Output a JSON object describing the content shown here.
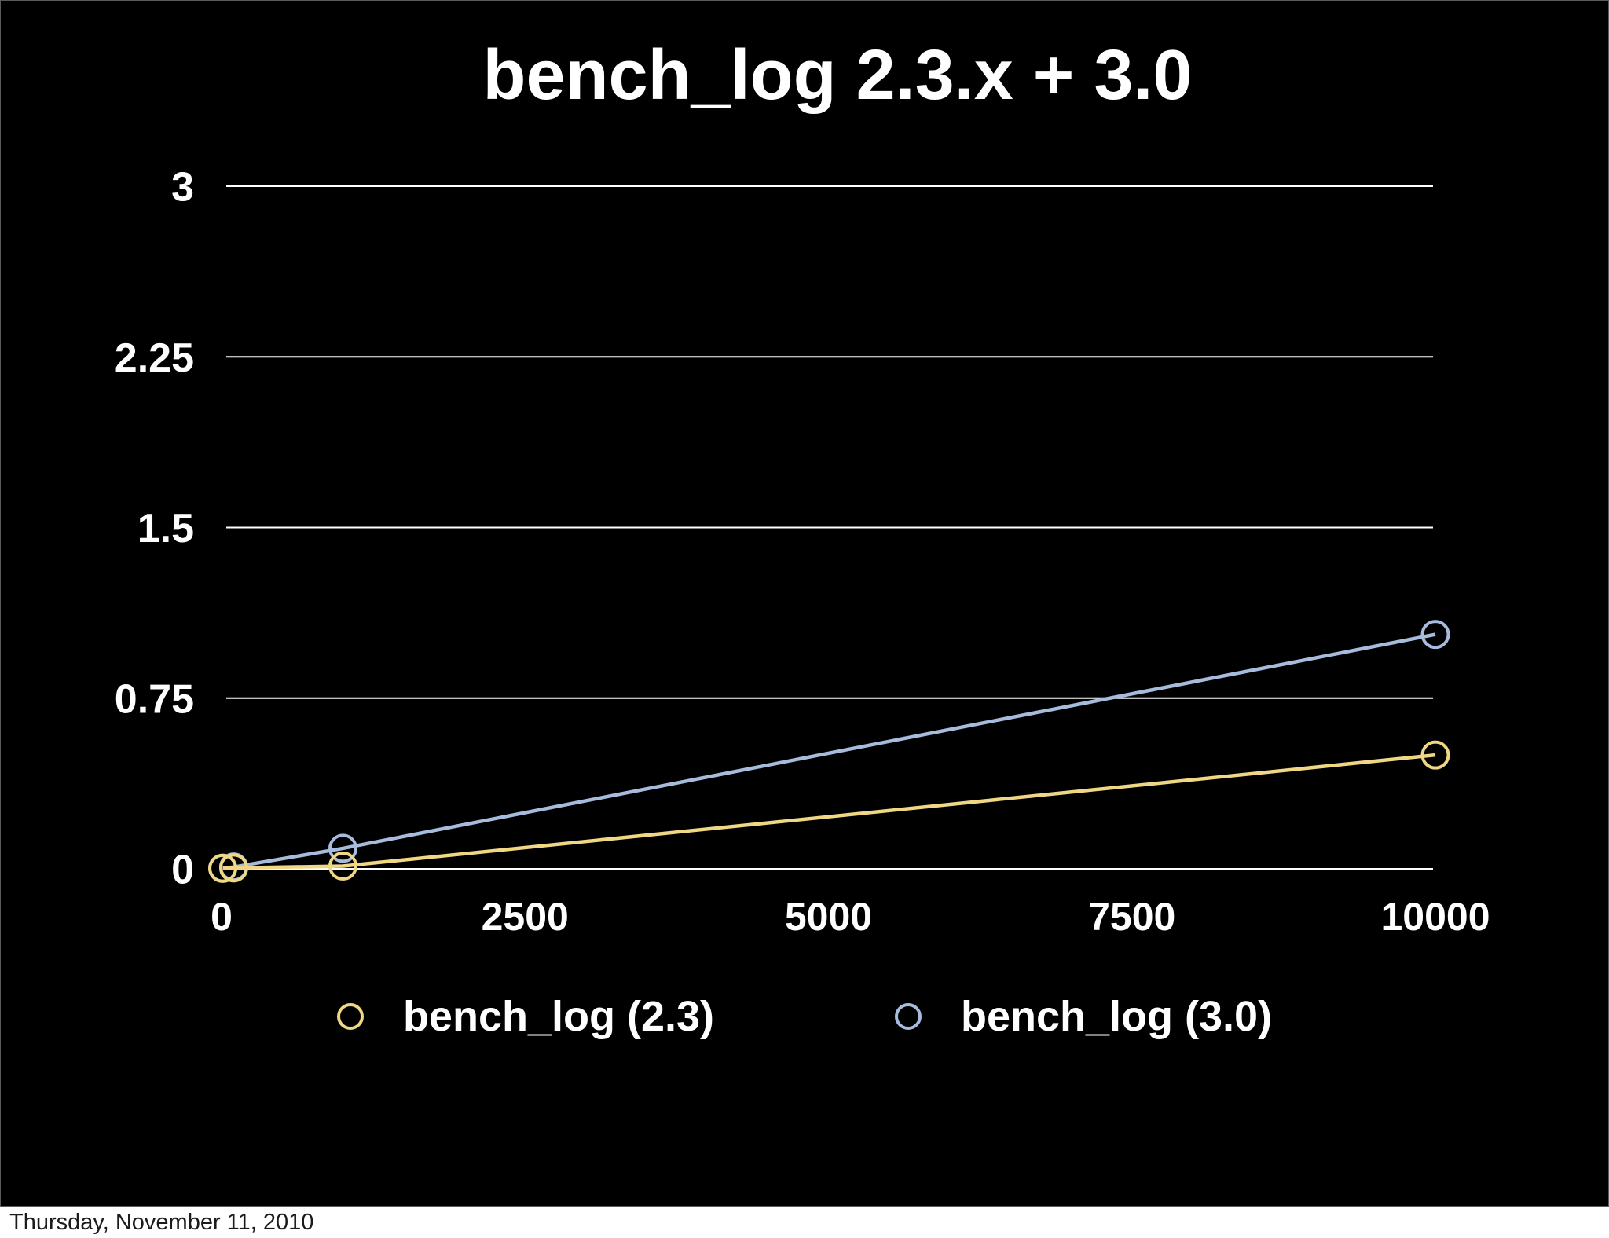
{
  "page": {
    "footer_date": "Thursday, November 11, 2010"
  },
  "chart_data": {
    "type": "line",
    "title": "bench_log 2.3.x + 3.0",
    "x": [
      10,
      100,
      1000,
      10000
    ],
    "series": [
      {
        "name": "bench_log (2.3)",
        "color": "#EFD783",
        "values": [
          0.002,
          0.004,
          0.012,
          0.5
        ]
      },
      {
        "name": "bench_log (3.0)",
        "color": "#A7BBDD",
        "values": [
          0.003,
          0.008,
          0.09,
          1.03
        ]
      }
    ],
    "xlim": [
      0,
      10000
    ],
    "ylim": [
      0,
      3
    ],
    "x_tick_values": [
      0,
      2500,
      5000,
      7500,
      10000
    ],
    "x_tick_labels": [
      "0",
      "2500",
      "5000",
      "7500",
      "10000"
    ],
    "y_tick_values": [
      0,
      0.75,
      1.5,
      2.25,
      3
    ],
    "y_tick_labels": [
      "0",
      "0.75",
      "1.5",
      "2.25",
      "3"
    ],
    "grid": "horizontal",
    "legend_position": "bottom",
    "marker": "open-circle",
    "text_color": "#FFFFFF",
    "background": "#000000"
  }
}
